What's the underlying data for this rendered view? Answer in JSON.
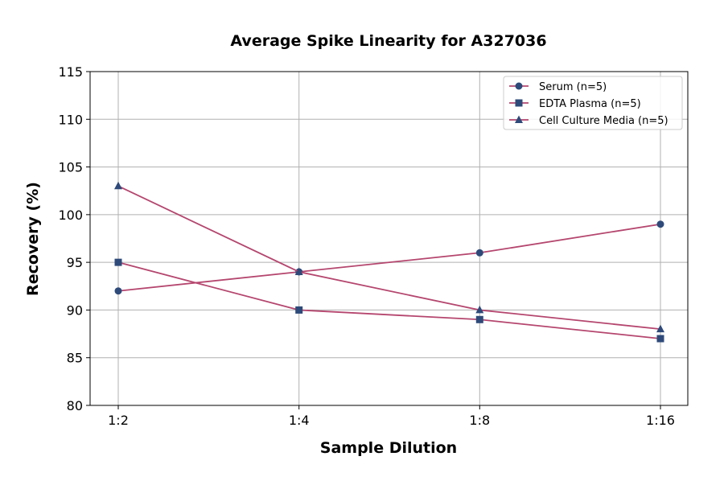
{
  "chart_data": {
    "type": "line",
    "title": "Average Spike Linearity for A327036",
    "xlabel": "Sample Dilution",
    "ylabel": "Recovery (%)",
    "categories": [
      "1:2",
      "1:4",
      "1:8",
      "1:16"
    ],
    "ylim": [
      80,
      115
    ],
    "yticks": [
      80,
      85,
      90,
      95,
      100,
      105,
      110,
      115
    ],
    "grid": true,
    "legend_position": "top-right",
    "line_color": "#b5466e",
    "marker_color": "#2e4a7a",
    "series": [
      {
        "name": "Serum (n=5)",
        "marker": "circle",
        "values": [
          92,
          94,
          96,
          99
        ]
      },
      {
        "name": "EDTA Plasma (n=5)",
        "marker": "square",
        "values": [
          95,
          90,
          89,
          87
        ]
      },
      {
        "name": "Cell Culture Media (n=5)",
        "marker": "triangle",
        "values": [
          103,
          94,
          90,
          88
        ]
      }
    ]
  }
}
